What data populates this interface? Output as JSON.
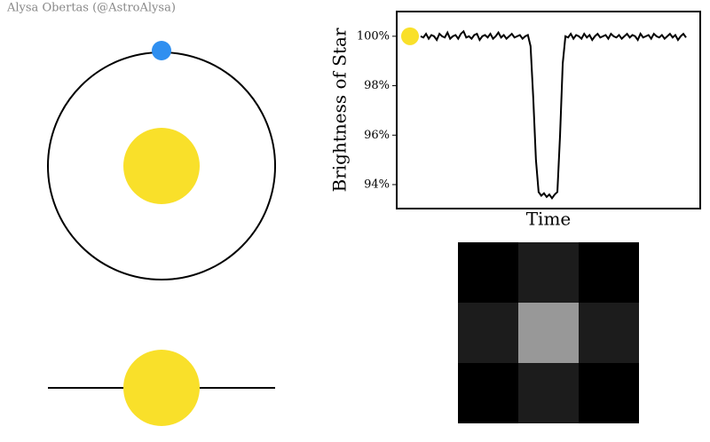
{
  "credit": "Alysa Obertas (@AstroAlysa)",
  "chart_data": {
    "type": "line",
    "ylabel": "Brightness of Star",
    "xlabel": "Time",
    "color": "#000000",
    "marker_color": "#f9e02a",
    "ylim": [
      93.03,
      101.0
    ],
    "yticks": [
      {
        "value": 94,
        "label": "94%"
      },
      {
        "value": 96,
        "label": "96%"
      },
      {
        "value": 98,
        "label": "98%"
      },
      {
        "value": 100,
        "label": "100%"
      }
    ],
    "values": [
      100.0,
      99.95,
      100.1,
      99.9,
      100.05,
      100.0,
      99.85,
      100.1,
      100.0,
      99.95,
      100.15,
      99.9,
      100.0,
      100.05,
      99.9,
      100.1,
      100.2,
      99.95,
      100.0,
      99.9,
      100.05,
      100.1,
      99.85,
      100.0,
      100.05,
      99.95,
      100.1,
      99.9,
      100.0,
      100.15,
      99.95,
      100.05,
      99.9,
      100.0,
      100.1,
      99.95,
      100.0,
      100.05,
      99.9,
      100.0,
      100.05,
      99.6,
      97.5,
      95.0,
      93.7,
      93.55,
      93.65,
      93.5,
      93.6,
      93.45,
      93.6,
      93.7,
      96.0,
      98.9,
      100.0,
      99.95,
      100.1,
      99.9,
      100.05,
      100.0,
      99.9,
      100.1,
      99.95,
      100.05,
      99.85,
      100.0,
      100.1,
      99.95,
      100.0,
      100.05,
      99.9,
      100.1,
      100.0,
      99.95,
      100.05,
      99.9,
      100.0,
      100.1,
      99.95,
      100.05,
      100.0,
      99.85,
      100.1,
      99.95,
      100.0,
      100.05,
      99.9,
      100.1,
      100.0,
      99.95,
      100.05,
      99.9,
      100.0,
      100.1,
      99.95,
      100.05,
      99.85,
      100.0,
      100.1,
      99.95
    ]
  },
  "pixel_grid": {
    "values": [
      [
        0,
        28,
        0
      ],
      [
        28,
        152,
        28
      ],
      [
        0,
        28,
        0
      ]
    ]
  }
}
